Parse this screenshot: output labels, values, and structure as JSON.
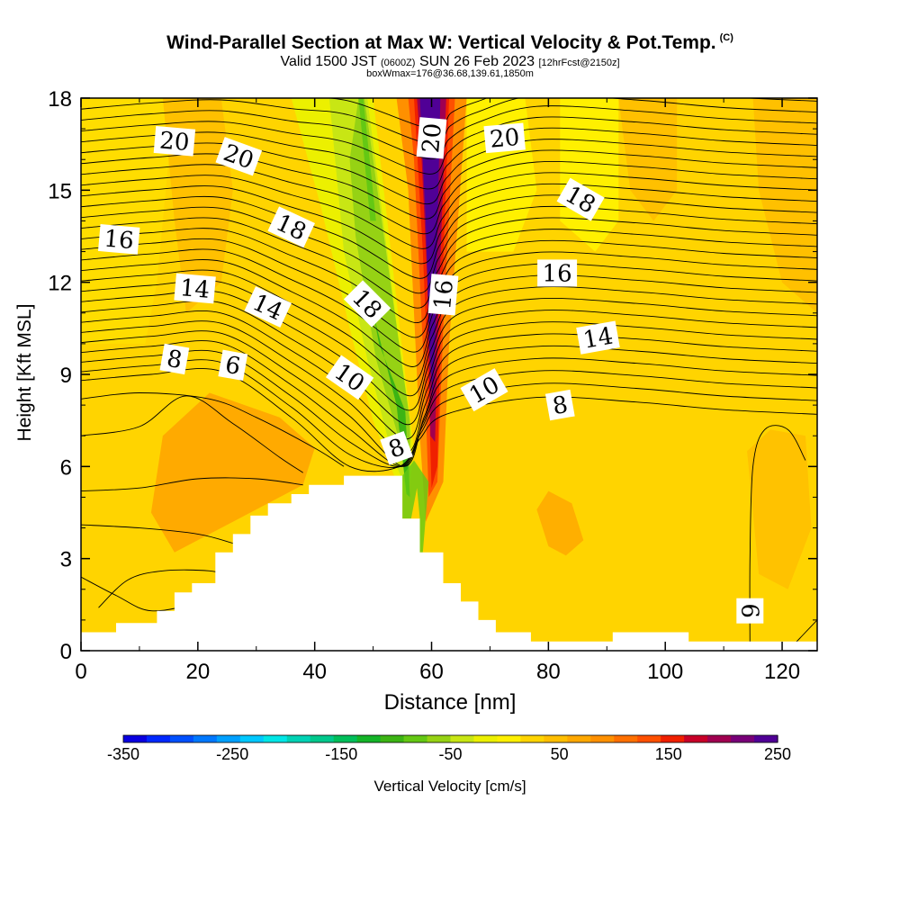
{
  "title": "Wind-Parallel Section at Max W: Vertical Velocity & Pot.Temp.",
  "copyright": "(C)",
  "subtitle_valid": "Valid 1500 JST",
  "subtitle_utc": "(0600Z)",
  "subtitle_date": "SUN 26 Feb 2023",
  "subtitle_fcst": "[12hrFcst@2150z]",
  "subtitle_box": "boxWmax=176@36.68,139.61,1850m",
  "colors": {
    "background": "#ffffff",
    "terrain": "#ffffff",
    "contour": "#000000",
    "field_base": "#ffd400"
  },
  "chart_data": {
    "type": "heatmap",
    "xlabel": "Distance [nm]",
    "ylabel": "Height [Kft MSL]",
    "xlim": [
      0,
      126
    ],
    "ylim": [
      0,
      18
    ],
    "x_ticks": [
      "0",
      "20",
      "40",
      "60",
      "80",
      "100",
      "120"
    ],
    "y_ticks": [
      "0",
      "3",
      "6",
      "9",
      "12",
      "15",
      "18"
    ],
    "terrain_profile_nm_kft": [
      [
        0,
        0.6
      ],
      [
        6,
        0.6
      ],
      [
        6,
        0.9
      ],
      [
        13,
        0.9
      ],
      [
        13,
        1.3
      ],
      [
        16,
        1.3
      ],
      [
        16,
        1.9
      ],
      [
        19,
        1.9
      ],
      [
        19,
        2.2
      ],
      [
        23,
        2.2
      ],
      [
        23,
        3.2
      ],
      [
        26,
        3.2
      ],
      [
        26,
        3.8
      ],
      [
        29,
        3.8
      ],
      [
        29,
        4.4
      ],
      [
        32,
        4.4
      ],
      [
        32,
        4.8
      ],
      [
        36,
        4.8
      ],
      [
        36,
        5.1
      ],
      [
        39,
        5.1
      ],
      [
        39,
        5.4
      ],
      [
        45,
        5.4
      ],
      [
        45,
        5.7
      ],
      [
        55,
        5.7
      ],
      [
        55,
        4.3
      ],
      [
        58,
        4.3
      ],
      [
        58,
        3.2
      ],
      [
        62,
        3.2
      ],
      [
        62,
        2.2
      ],
      [
        65,
        2.2
      ],
      [
        65,
        1.6
      ],
      [
        68,
        1.6
      ],
      [
        68,
        1.0
      ],
      [
        71,
        1.0
      ],
      [
        71,
        0.6
      ],
      [
        77,
        0.6
      ],
      [
        77,
        0.3
      ],
      [
        91,
        0.3
      ],
      [
        91,
        0.6
      ],
      [
        104,
        0.6
      ],
      [
        104,
        0.3
      ],
      [
        126,
        0.3
      ]
    ],
    "vertical_velocity_colorbar": {
      "label": "Vertical Velocity [cm/s]",
      "tick_labels": [
        "-350",
        "-250",
        "-150",
        "-50",
        "50",
        "150",
        "250"
      ],
      "range": [
        -350,
        250
      ],
      "step": 25,
      "colors": [
        "#0a00e0",
        "#0028ff",
        "#0050ff",
        "#0078ff",
        "#00a0ff",
        "#00c8ff",
        "#00e6e6",
        "#00d2b4",
        "#00c88c",
        "#00be5a",
        "#14b428",
        "#3cb414",
        "#64c814",
        "#96d214",
        "#c8e614",
        "#ecf000",
        "#fff000",
        "#ffd400",
        "#ffbe00",
        "#ffa800",
        "#ff9000",
        "#ff7000",
        "#ff5000",
        "#f02000",
        "#c80028",
        "#a00050",
        "#780078",
        "#500096"
      ]
    },
    "velocity_features": [
      {
        "feature": "updraft core",
        "x_nm": 61,
        "z_kft": [
          4.5,
          18
        ],
        "max_cm_s": 250
      },
      {
        "feature": "downdraft band",
        "x_nm": 52,
        "z_kft": [
          5,
          18
        ],
        "min_cm_s": -150
      }
    ],
    "theta_contour_labels": [
      {
        "text": "20",
        "x": 16,
        "y": 16.6,
        "rot": 5
      },
      {
        "text": "20",
        "x": 27,
        "y": 16.1,
        "rot": 20
      },
      {
        "text": "18",
        "x": 36,
        "y": 13.8,
        "rot": 25
      },
      {
        "text": "16",
        "x": 6.5,
        "y": 13.4,
        "rot": 5
      },
      {
        "text": "14",
        "x": 19.5,
        "y": 11.8,
        "rot": 5
      },
      {
        "text": "14",
        "x": 32,
        "y": 11.2,
        "rot": 25
      },
      {
        "text": "8",
        "x": 16,
        "y": 9.5,
        "rot": 10
      },
      {
        "text": "6",
        "x": 26,
        "y": 9.3,
        "rot": 10
      },
      {
        "text": "18",
        "x": 49,
        "y": 11.3,
        "rot": 45
      },
      {
        "text": "10",
        "x": 46,
        "y": 8.9,
        "rot": 35
      },
      {
        "text": "8",
        "x": 54,
        "y": 6.6,
        "rot": -20
      },
      {
        "text": "20",
        "x": 60,
        "y": 16.7,
        "rot": -85
      },
      {
        "text": "16",
        "x": 62,
        "y": 11.6,
        "rot": -85
      },
      {
        "text": "20",
        "x": 72.5,
        "y": 16.7,
        "rot": -5
      },
      {
        "text": "18",
        "x": 85.5,
        "y": 14.7,
        "rot": 30
      },
      {
        "text": "16",
        "x": 81.5,
        "y": 12.3,
        "rot": 0
      },
      {
        "text": "14",
        "x": 88.5,
        "y": 10.2,
        "rot": -10
      },
      {
        "text": "10",
        "x": 69,
        "y": 8.5,
        "rot": -30
      },
      {
        "text": "8",
        "x": 82,
        "y": 8.0,
        "rot": -10
      },
      {
        "text": "6",
        "x": 114.5,
        "y": 1.3,
        "rot": 90
      }
    ]
  }
}
